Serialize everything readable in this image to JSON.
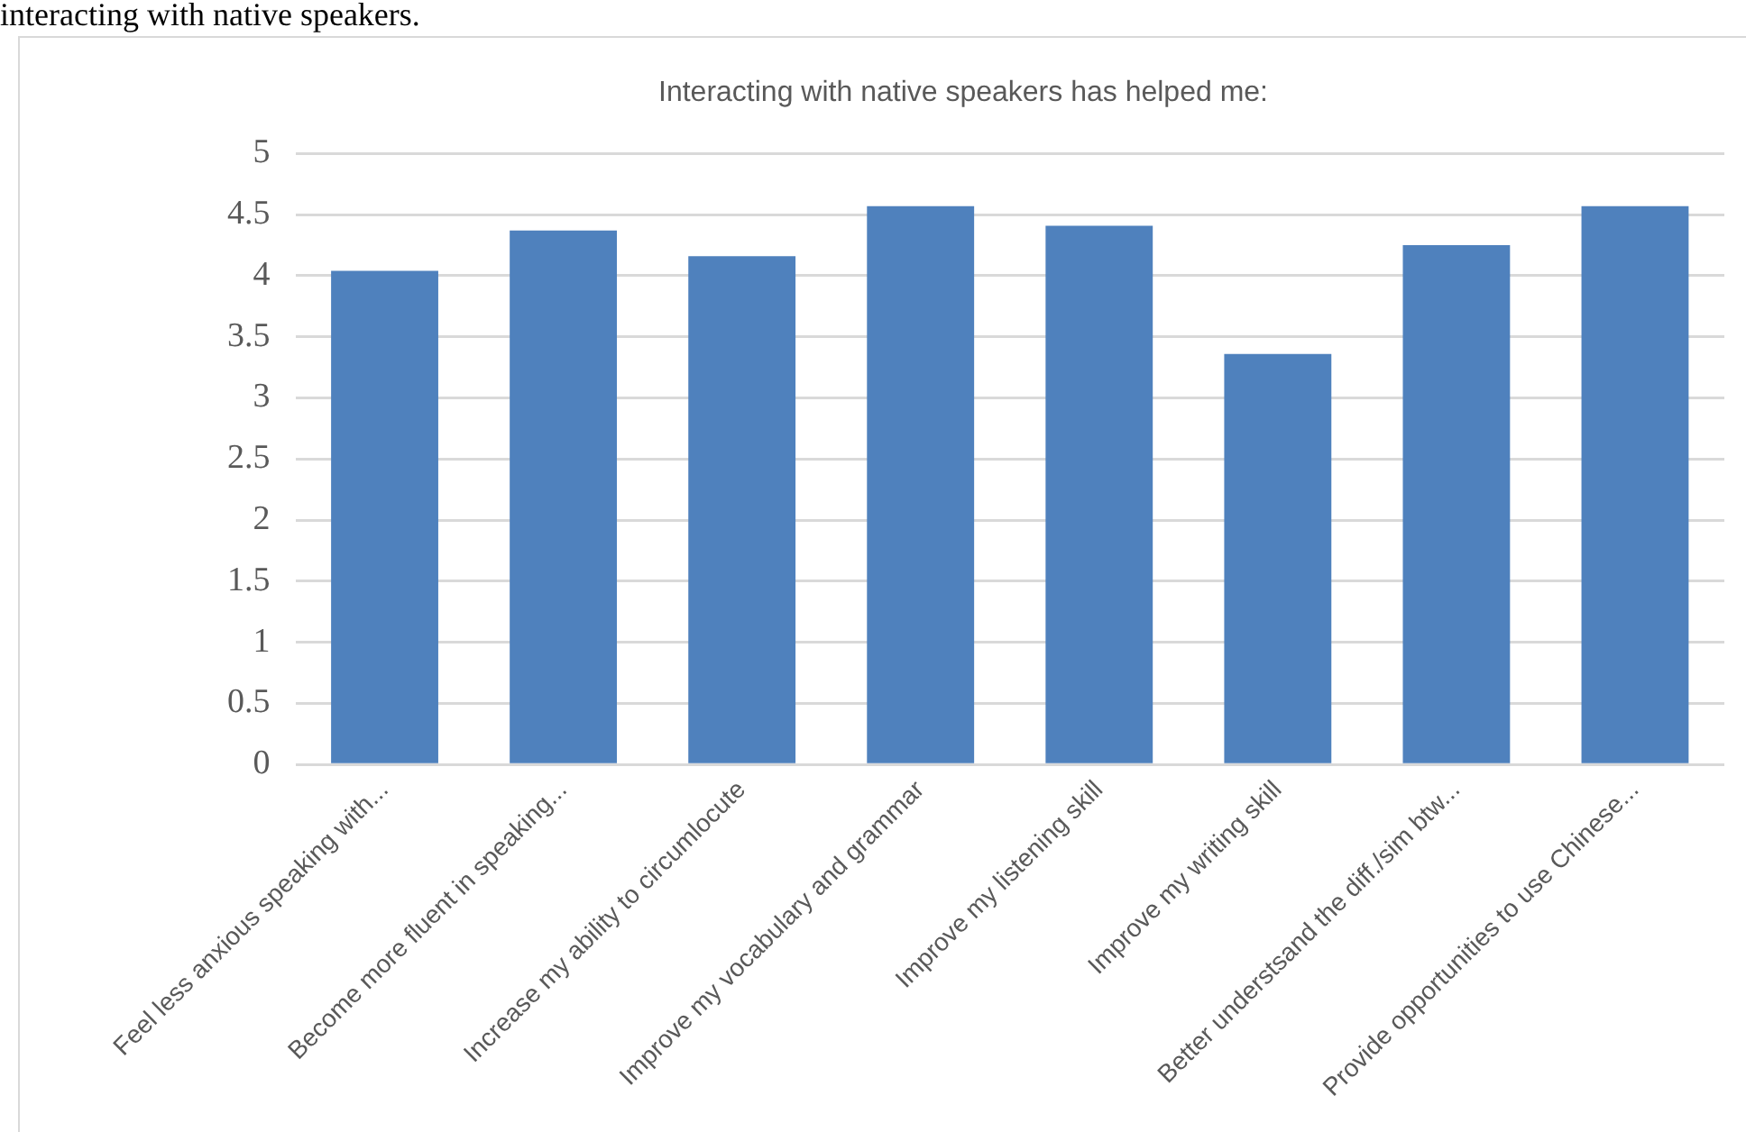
{
  "chart_data": {
    "type": "bar",
    "title": "Interacting with native speakers has helped me:",
    "annotations": [
      "interacting with native speakers."
    ],
    "categories": [
      "Feel less anxious speaking with...",
      "Become more fluent in speaking...",
      "Increase my ability to circumlocute",
      "Improve my vocabulary and grammar",
      "Improve my listening skill",
      "Improve my writing skill",
      "Better understsand the diff./sim btw...",
      "Provide opportunities to use Chinese..."
    ],
    "values": [
      4.04,
      4.37,
      4.16,
      4.57,
      4.41,
      3.36,
      4.25,
      4.57
    ],
    "color": "#4f81bd",
    "ylim": [
      0,
      5
    ],
    "yticks": [
      0,
      0.5,
      1,
      1.5,
      2,
      2.5,
      3,
      3.5,
      4,
      4.5,
      5
    ],
    "grid": "y",
    "legend": false
  }
}
